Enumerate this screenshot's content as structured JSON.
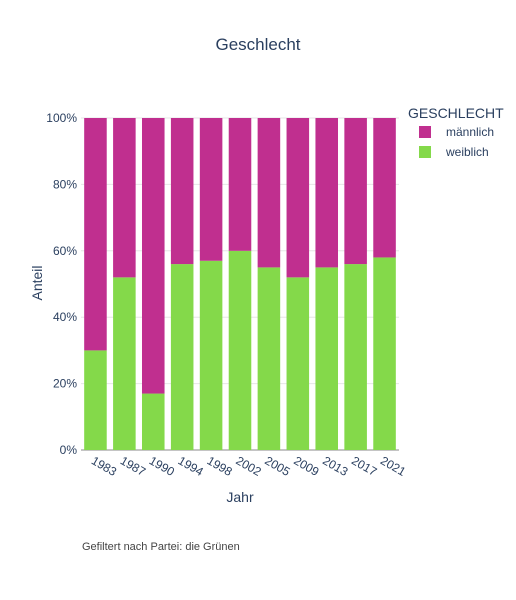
{
  "chart_data": {
    "type": "bar",
    "stacked": true,
    "title": "Geschlecht",
    "xlabel": "Jahr",
    "ylabel": "Anteil",
    "ylim": [
      0,
      100
    ],
    "yticks": [
      "0%",
      "20%",
      "40%",
      "60%",
      "80%",
      "100%"
    ],
    "categories": [
      "1983",
      "1987",
      "1990",
      "1994",
      "1998",
      "2002",
      "2005",
      "2009",
      "2013",
      "2017",
      "2021"
    ],
    "legend": {
      "title": "GESCHLECHT",
      "position": "top-right"
    },
    "series": [
      {
        "name": "weiblich",
        "color": "#84d94a",
        "values": [
          30,
          52,
          17,
          56,
          57,
          60,
          55,
          52,
          55,
          56,
          58
        ]
      },
      {
        "name": "männlich",
        "color": "#c02f8f",
        "values": [
          70,
          48,
          83,
          44,
          43,
          40,
          45,
          48,
          45,
          44,
          42
        ]
      }
    ],
    "legend_order": [
      "männlich",
      "weiblich"
    ],
    "grid": true
  },
  "footnote": "Gefiltert nach Partei: die Grünen"
}
